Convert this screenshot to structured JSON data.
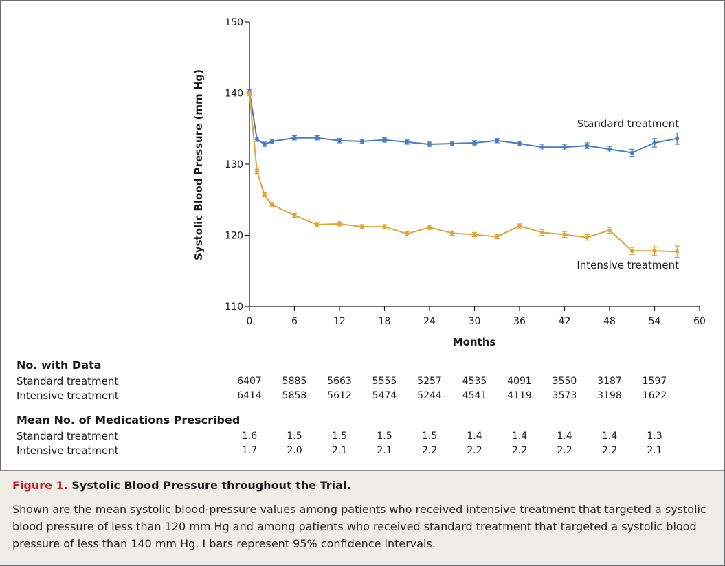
{
  "chart_data": {
    "type": "line",
    "title": "",
    "xlabel": "Months",
    "ylabel": "Systolic Blood Pressure (mm Hg)",
    "xlim": [
      0,
      60
    ],
    "ylim": [
      110,
      150
    ],
    "xticks": [
      0,
      6,
      12,
      18,
      24,
      30,
      36,
      42,
      48,
      54,
      60
    ],
    "yticks": [
      110,
      120,
      130,
      140,
      150
    ],
    "grid": false,
    "error_bars": "95% confidence intervals",
    "series": [
      {
        "name": "Standard treatment",
        "color": "#4a7dbf",
        "x": [
          0,
          1,
          2,
          3,
          6,
          9,
          12,
          15,
          18,
          21,
          24,
          27,
          30,
          33,
          36,
          39,
          42,
          45,
          48,
          51,
          54,
          57
        ],
        "y": [
          140.2,
          133.5,
          132.8,
          133.2,
          133.7,
          133.7,
          133.3,
          133.2,
          133.4,
          133.1,
          132.8,
          132.9,
          133.0,
          133.3,
          132.9,
          132.4,
          132.4,
          132.6,
          132.1,
          131.6,
          133.0,
          133.6
        ],
        "err": [
          0.3,
          0.3,
          0.3,
          0.3,
          0.3,
          0.3,
          0.3,
          0.3,
          0.3,
          0.3,
          0.3,
          0.3,
          0.3,
          0.3,
          0.3,
          0.4,
          0.4,
          0.4,
          0.4,
          0.5,
          0.6,
          0.8
        ]
      },
      {
        "name": "Intensive treatment",
        "color": "#e2a53a",
        "x": [
          0,
          1,
          2,
          3,
          6,
          9,
          12,
          15,
          18,
          21,
          24,
          27,
          30,
          33,
          36,
          39,
          42,
          45,
          48,
          51,
          54,
          57
        ],
        "y": [
          139.9,
          129.0,
          125.7,
          124.3,
          122.8,
          121.5,
          121.6,
          121.2,
          121.2,
          120.2,
          121.1,
          120.3,
          120.1,
          119.8,
          121.3,
          120.4,
          120.1,
          119.7,
          120.7,
          117.8,
          117.8,
          117.7
        ],
        "err": [
          0.3,
          0.3,
          0.3,
          0.3,
          0.3,
          0.3,
          0.3,
          0.3,
          0.3,
          0.3,
          0.3,
          0.3,
          0.3,
          0.3,
          0.3,
          0.4,
          0.4,
          0.4,
          0.4,
          0.5,
          0.6,
          0.8
        ]
      }
    ]
  },
  "tables": [
    {
      "heading": "No. with Data",
      "columns": [
        0,
        6,
        12,
        18,
        24,
        30,
        36,
        42,
        48,
        54
      ],
      "rows": [
        {
          "label": "Standard treatment",
          "values": [
            "6407",
            "5885",
            "5663",
            "5555",
            "5257",
            "4535",
            "4091",
            "3550",
            "3187",
            "1597"
          ]
        },
        {
          "label": "Intensive treatment",
          "values": [
            "6414",
            "5858",
            "5612",
            "5474",
            "5244",
            "4541",
            "4119",
            "3573",
            "3198",
            "1622"
          ]
        }
      ]
    },
    {
      "heading": "Mean No. of Medications Prescribed",
      "columns": [
        0,
        6,
        12,
        18,
        24,
        30,
        36,
        42,
        48,
        54
      ],
      "rows": [
        {
          "label": "Standard treatment",
          "values": [
            "1.6",
            "1.5",
            "1.5",
            "1.5",
            "1.5",
            "1.4",
            "1.4",
            "1.4",
            "1.4",
            "1.3"
          ]
        },
        {
          "label": "Intensive treatment",
          "values": [
            "1.7",
            "2.0",
            "2.1",
            "2.1",
            "2.2",
            "2.2",
            "2.2",
            "2.2",
            "2.2",
            "2.1"
          ]
        }
      ]
    }
  ],
  "caption": {
    "figure_number": "Figure 1.",
    "title": "Systolic Blood Pressure throughout the Trial.",
    "body": "Shown are the mean systolic blood-pressure values among patients who received intensive treatment that targeted a systolic blood pressure of less than 120 mm Hg and among patients who received standard treatment that targeted a systolic blood pressure of less than 140 mm Hg. I bars represent 95% confidence intervals.",
    "title_color": "#c0202e"
  }
}
